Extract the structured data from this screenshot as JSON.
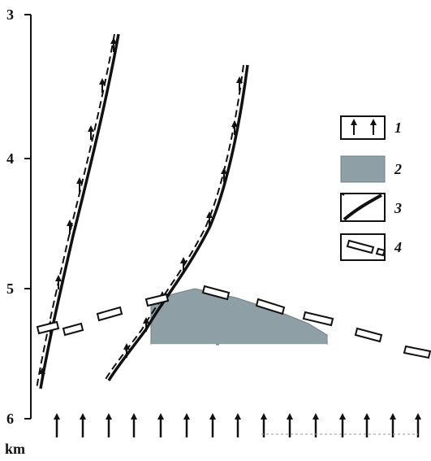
{
  "axis": {
    "unit": "km",
    "ticks": [
      "3",
      "4",
      "5",
      "6"
    ]
  },
  "legend": {
    "items": [
      {
        "number": "1",
        "symbol": "upward-arrows-icon"
      },
      {
        "number": "2",
        "symbol": "gray-fill-icon"
      },
      {
        "number": "3",
        "symbol": "fault-line-icon"
      },
      {
        "number": "4",
        "symbol": "dashed-boundary-icon"
      }
    ]
  },
  "colors": {
    "shaded_body": "#8f9fa6",
    "ink": "#111111"
  }
}
